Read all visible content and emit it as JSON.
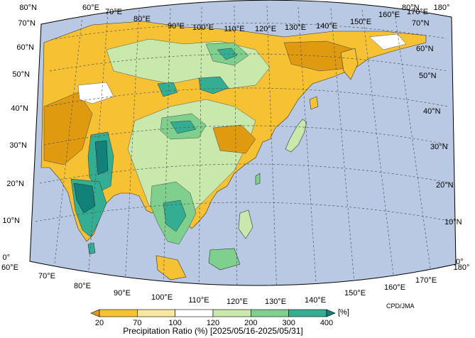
{
  "map": {
    "lon_labels_top": [
      "60°E",
      "70°E",
      "80°E",
      "90°E",
      "100°E",
      "110°E",
      "120°E",
      "130°E",
      "140°E",
      "150°E",
      "160°E",
      "170°E",
      "180°"
    ],
    "lon_labels_bottom": [
      "60°E",
      "70°E",
      "80°E",
      "90°E",
      "100°E",
      "110°E",
      "120°E",
      "130°E",
      "140°E",
      "150°E",
      "160°E",
      "170°E",
      "180°"
    ],
    "lat_labels_left": [
      "80°N",
      "70°N",
      "60°N",
      "50°N",
      "40°N",
      "30°N",
      "20°N",
      "10°N",
      "0°"
    ],
    "lat_labels_right": [
      "80°N",
      "70°N",
      "60°N",
      "50°N",
      "40°N",
      "30°N",
      "20°N",
      "10°N",
      "0°"
    ],
    "ocean_color": "#b9c9e4",
    "credit": "CPD/JMA"
  },
  "legend": {
    "unit": "[%]",
    "caption": "Precipitation Ratio (%) [2025/05/16-2025/05/31]",
    "thresholds": [
      "20",
      "70",
      "100",
      "120",
      "200",
      "300",
      "400"
    ],
    "colors": [
      "#e09a10",
      "#f6c233",
      "#fbe8a0",
      "#ffffff",
      "#c9e8ab",
      "#7fcf8e",
      "#33ae93",
      "#11817a"
    ]
  }
}
